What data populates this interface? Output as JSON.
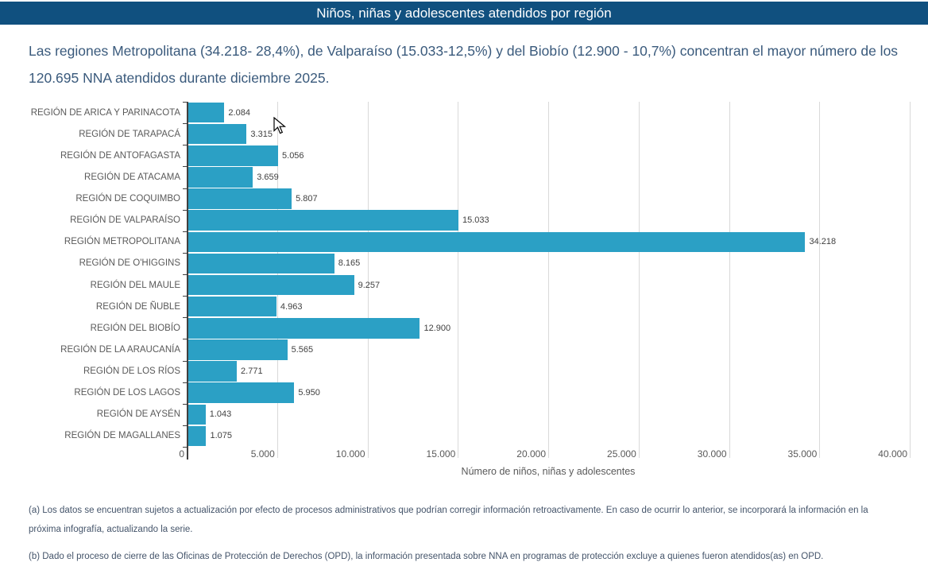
{
  "header": {
    "title": "Niños, niñas y adolescentes atendidos por región",
    "bg_color": "#10507F",
    "text_color": "#FFFFFF"
  },
  "intro": {
    "text": "Las regiones Metropolitana (34.218- 28,4%), de Valparaíso (15.033-12,5%) y del Biobío (12.900 - 10,7%) concentran el mayor número de los 120.695 NNA atendidos durante diciembre 2025."
  },
  "chart_data": {
    "type": "bar",
    "orientation": "horizontal",
    "title": "Niños, niñas y adolescentes atendidos por región",
    "categories": [
      "REGIÓN DE ARICA Y PARINACOTA",
      "REGIÓN DE TARAPACÁ",
      "REGIÓN DE ANTOFAGASTA",
      "REGIÓN DE ATACAMA",
      "REGIÓN DE COQUIMBO",
      "REGIÓN DE VALPARAÍSO",
      "REGIÓN METROPOLITANA",
      "REGIÓN DE O'HIGGINS",
      "REGIÓN DEL MAULE",
      "REGIÓN DE ÑUBLE",
      "REGIÓN DEL BIOBÍO",
      "REGIÓN DE LA ARAUCANÍA",
      "REGIÓN DE LOS RÍOS",
      "REGIÓN DE LOS LAGOS",
      "REGIÓN DE AYSÉN",
      "REGIÓN DE MAGALLANES"
    ],
    "values": [
      2084,
      3315,
      5056,
      3659,
      5807,
      15033,
      34218,
      8165,
      9257,
      4963,
      12900,
      5565,
      2771,
      5950,
      1043,
      1075
    ],
    "value_labels": [
      "2.084",
      "3.315",
      "5.056",
      "3.659",
      "5.807",
      "15.033",
      "34.218",
      "8.165",
      "9.257",
      "4.963",
      "12.900",
      "5.565",
      "2.771",
      "5.950",
      "1.043",
      "1.075"
    ],
    "xlabel": "Número de niños, niñas y adolescentes",
    "ylabel": "",
    "xlim": [
      0,
      40000
    ],
    "x_ticks": [
      0,
      5000,
      10000,
      15000,
      20000,
      25000,
      30000,
      35000,
      40000
    ],
    "x_tick_labels": [
      "0",
      "5.000",
      "10.000",
      "15.000",
      "20.000",
      "25.000",
      "30.000",
      "35.000",
      "40.000"
    ],
    "grid": true,
    "legend": false,
    "bar_color": "#2BA0C5",
    "gridline_color": "#D9D9D9",
    "axis_line_color": "#404040"
  },
  "footnotes": [
    "(a) Los datos se encuentran sujetos a actualización por efecto de procesos administrativos que podrían corregir información retroactivamente. En caso de ocurrir lo anterior, se incorporará la información en la próxima infografía, actualizando la serie.",
    "(b) Dado el proceso de cierre de las Oficinas de Protección de Derechos (OPD), la información presentada sobre NNA en programas de protección excluye a quienes fueron atendidos(as) en OPD."
  ]
}
